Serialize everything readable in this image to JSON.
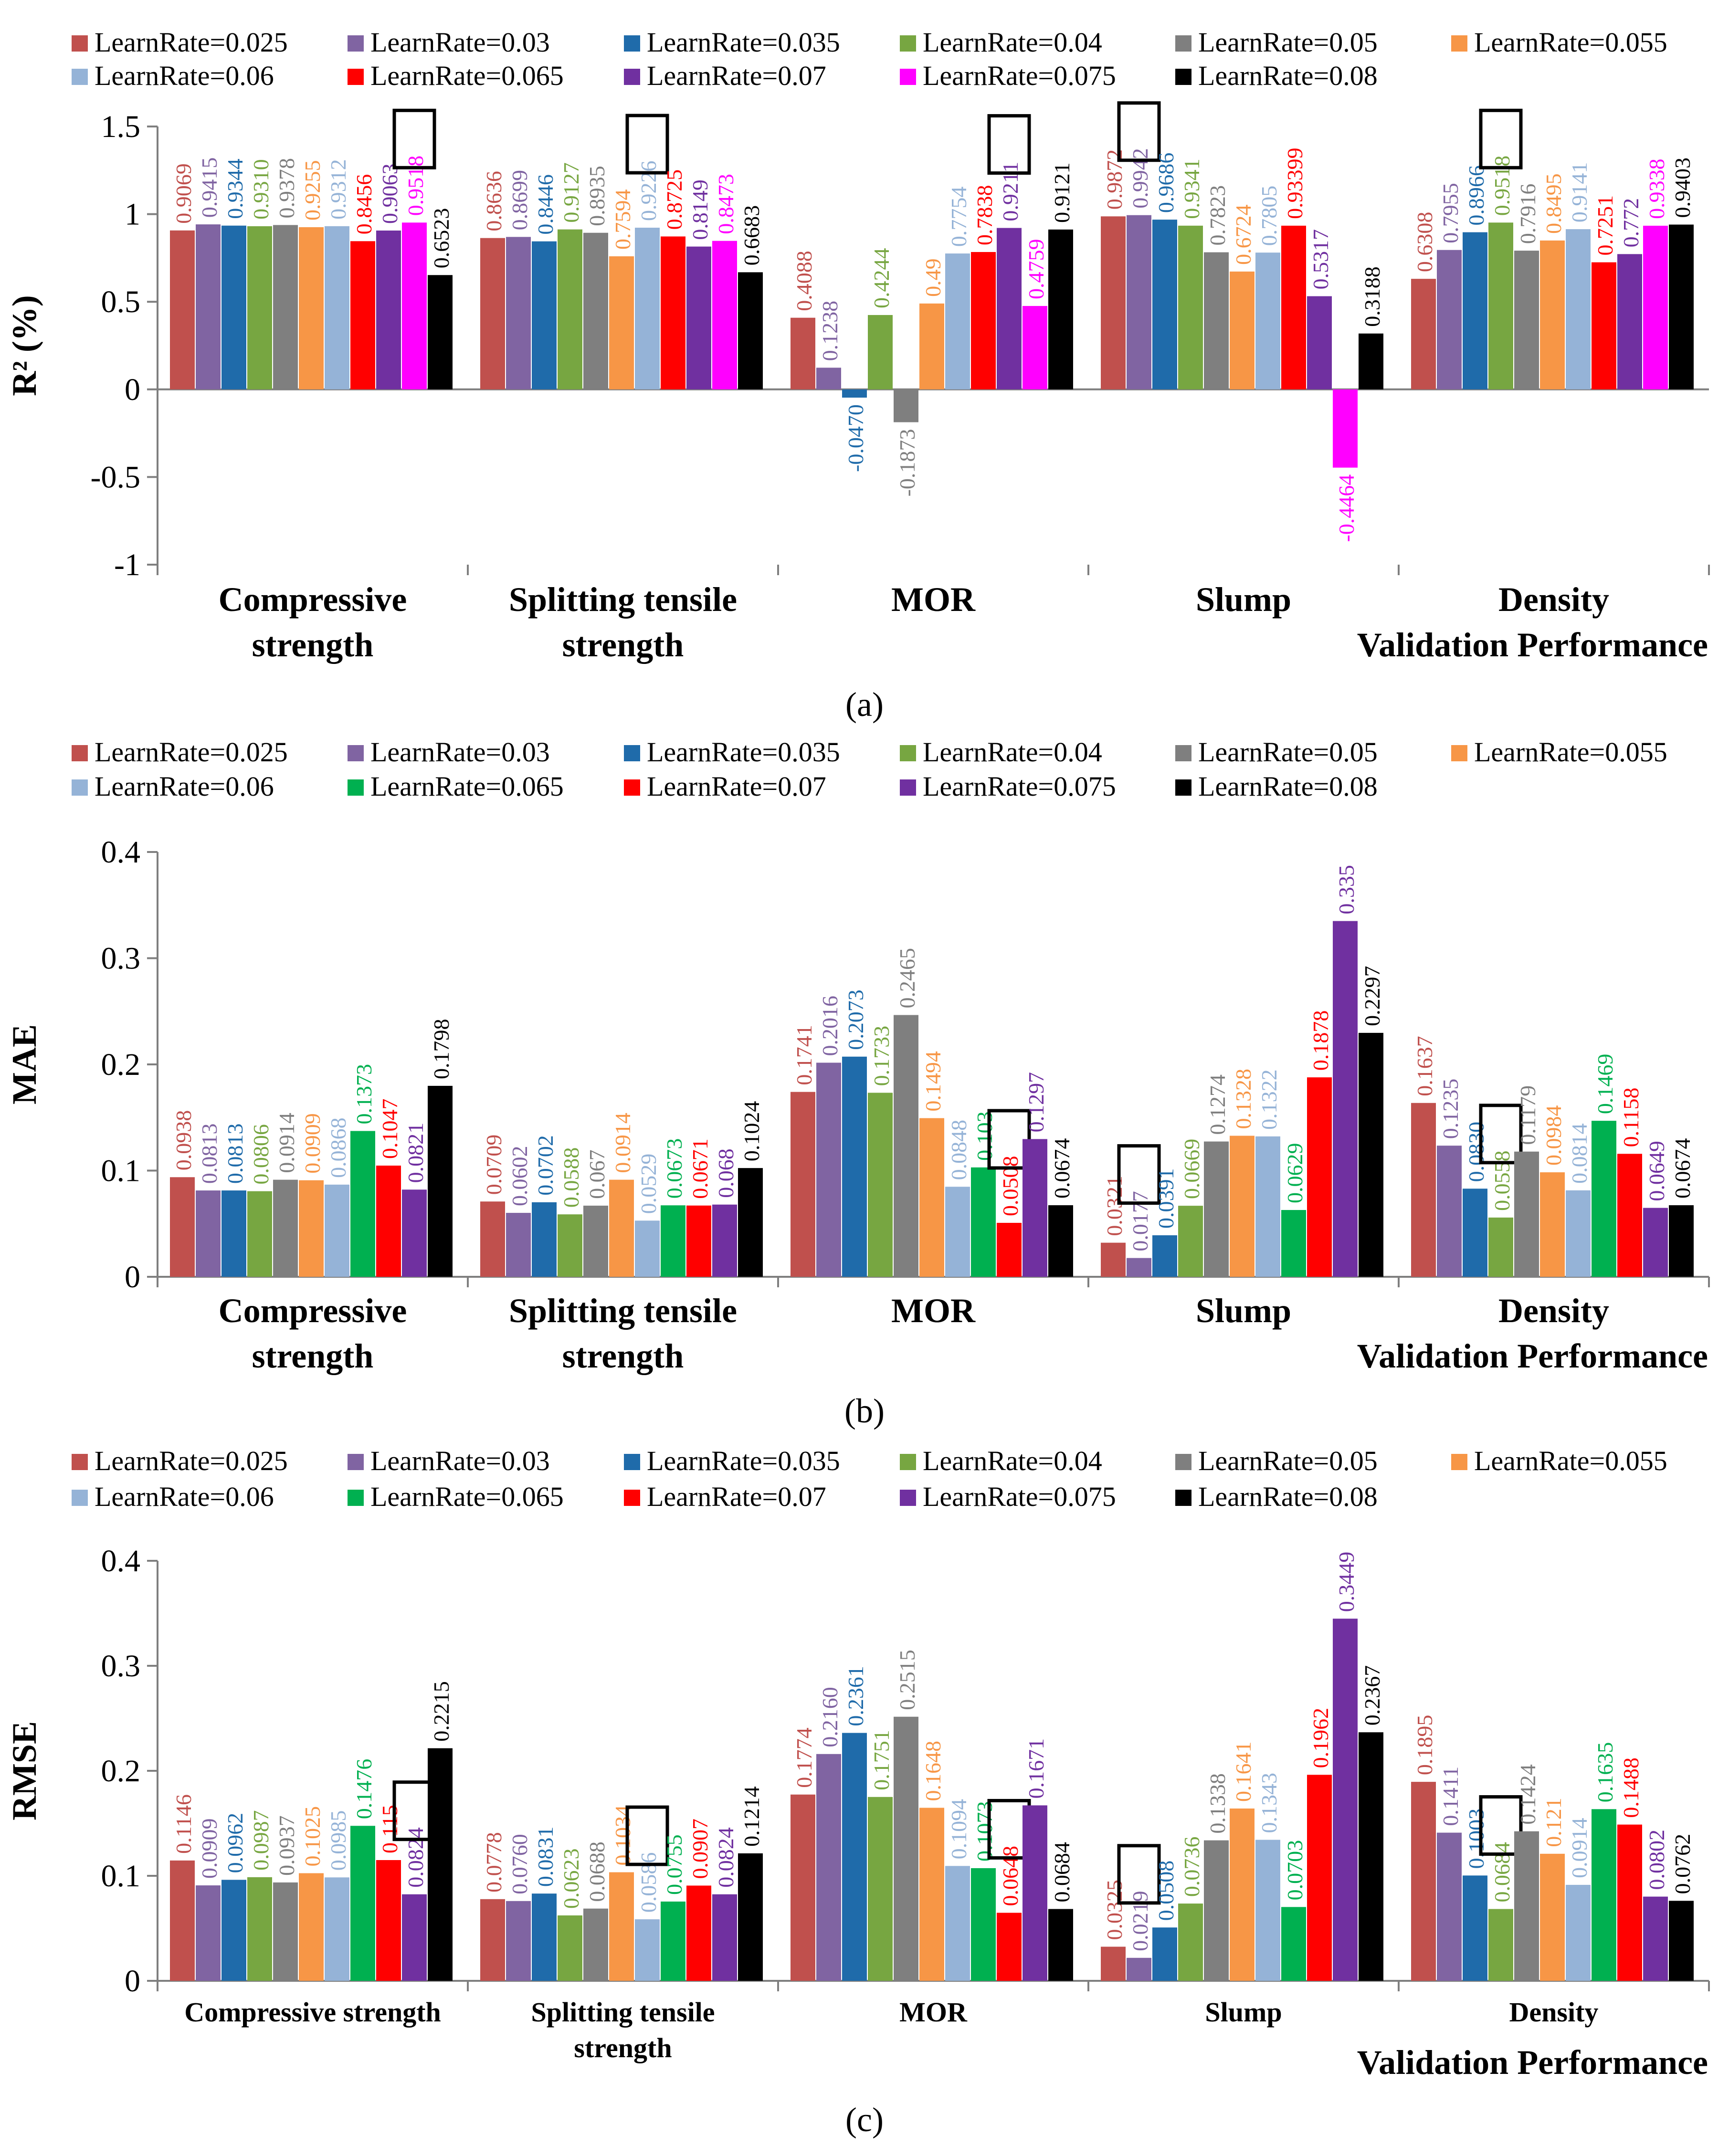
{
  "figure": {
    "panel_labels": [
      "(a)",
      "(b)",
      "(c)"
    ]
  },
  "chart_data": [
    {
      "type": "bar",
      "panel": "(a)",
      "ylabel": "R² (%)",
      "xlabel": "Validation Performance",
      "ylim": [
        -1,
        1.5
      ],
      "yticks": [
        "-1",
        "-0.5",
        "0",
        "0.5",
        "1",
        "1.5"
      ],
      "grid": false,
      "legend_position": "top",
      "categories": [
        "Compressive strength",
        "Splitting tensile strength",
        "MOR",
        "Slump",
        "Density"
      ],
      "series": [
        {
          "name": "LearnRate=0.025",
          "color": "#C0504D",
          "values": [
            0.9069,
            0.8636,
            0.4088,
            0.9872,
            0.6308
          ],
          "labels": [
            "0.9069",
            "0.8636",
            "0.4088",
            "0.9872",
            "0.6308"
          ]
        },
        {
          "name": "LearnRate=0.03",
          "color": "#8064A2",
          "values": [
            0.9415,
            0.8699,
            0.1238,
            0.9942,
            0.7955
          ],
          "labels": [
            "0.9415",
            "0.8699",
            "0.1238",
            "0.9942",
            "0.7955"
          ]
        },
        {
          "name": "LearnRate=0.035",
          "color": "#1F6BAA",
          "values": [
            0.9344,
            0.8446,
            -0.047,
            0.9686,
            0.8966
          ],
          "labels": [
            "0.9344",
            "0.8446",
            "-0.0470",
            "0.9686",
            "0.8966"
          ]
        },
        {
          "name": "LearnRate=0.04",
          "color": "#77A641",
          "values": [
            0.931,
            0.9127,
            0.4244,
            0.9341,
            0.9518
          ],
          "labels": [
            "0.9310",
            "0.9127",
            "0.4244",
            "0.9341",
            "0.9518"
          ]
        },
        {
          "name": "LearnRate=0.05",
          "color": "#7F7F7F",
          "values": [
            0.9378,
            0.8935,
            -0.1873,
            0.7823,
            0.7916
          ],
          "labels": [
            "0.9378",
            "0.8935",
            "-0.1873",
            "0.7823",
            "0.7916"
          ]
        },
        {
          "name": "LearnRate=0.055",
          "color": "#F79646",
          "values": [
            0.9255,
            0.7594,
            0.49,
            0.6724,
            0.8495
          ],
          "labels": [
            "0.9255",
            "0.7594",
            "0.49",
            "0.6724",
            "0.8495"
          ]
        },
        {
          "name": "LearnRate=0.06",
          "color": "#95B3D7",
          "values": [
            0.9312,
            0.9226,
            0.7754,
            0.7805,
            0.9141
          ],
          "labels": [
            "0.9312",
            "0.9226",
            "0.7754",
            "0.7805",
            "0.9141"
          ]
        },
        {
          "name": "LearnRate=0.065",
          "color": "#FF0000",
          "values": [
            0.8456,
            0.8725,
            0.7838,
            0.93399,
            0.7251
          ],
          "labels": [
            "0.8456",
            "0.8725",
            "0.7838",
            "0.93399",
            "0.7251"
          ]
        },
        {
          "name": "LearnRate=0.07",
          "color": "#7030A0",
          "values": [
            0.9063,
            0.8149,
            0.9211,
            0.5317,
            0.772
          ],
          "labels": [
            "0.9063",
            "0.8149",
            "0.9211",
            "0.5317",
            "0.772"
          ]
        },
        {
          "name": "LearnRate=0.075",
          "color": "#FF00FF",
          "values": [
            0.9518,
            0.8473,
            0.4759,
            -0.4464,
            0.9338
          ],
          "labels": [
            "0.9518",
            "0.8473",
            "0.4759",
            "-0.4464",
            "0.9338"
          ]
        },
        {
          "name": "LearnRate=0.08",
          "color": "#000000",
          "values": [
            0.6523,
            0.6683,
            0.9121,
            0.3188,
            0.9403
          ],
          "labels": [
            "0.6523",
            "0.6683",
            "0.9121",
            "0.3188",
            "0.9403"
          ]
        }
      ],
      "highlighted": [
        [
          0,
          9
        ],
        [
          1,
          6
        ],
        [
          2,
          8
        ],
        [
          3,
          1
        ],
        [
          4,
          3
        ]
      ]
    },
    {
      "type": "bar",
      "panel": "(b)",
      "ylabel": "MAE",
      "xlabel": "Validation Performance",
      "ylim": [
        0,
        0.4
      ],
      "yticks": [
        "0",
        "0.1",
        "0.2",
        "0.3",
        "0.4"
      ],
      "grid": false,
      "legend_position": "top",
      "categories": [
        "Compressive strength",
        "Splitting tensile strength",
        "MOR",
        "Slump",
        "Density"
      ],
      "series": [
        {
          "name": "LearnRate=0.025",
          "color": "#C0504D",
          "values": [
            0.0938,
            0.0709,
            0.1741,
            0.0321,
            0.1637
          ],
          "labels": [
            "0.0938",
            "0.0709",
            "0.1741",
            "0.0321",
            "0.1637"
          ]
        },
        {
          "name": "LearnRate=0.03",
          "color": "#8064A2",
          "values": [
            0.0813,
            0.0602,
            0.2016,
            0.0177,
            0.1235
          ],
          "labels": [
            "0.0813",
            "0.0602",
            "0.2016",
            "0.0177",
            "0.1235"
          ]
        },
        {
          "name": "LearnRate=0.035",
          "color": "#1F6BAA",
          "values": [
            0.0813,
            0.0702,
            0.2073,
            0.0391,
            0.083
          ],
          "labels": [
            "0.0813",
            "0.0702",
            "0.2073",
            "0.0391",
            "0.0830"
          ]
        },
        {
          "name": "LearnRate=0.04",
          "color": "#77A641",
          "values": [
            0.0806,
            0.0588,
            0.1733,
            0.0669,
            0.0558
          ],
          "labels": [
            "0.0806",
            "0.0588",
            "0.1733",
            "0.0669",
            "0.0558"
          ]
        },
        {
          "name": "LearnRate=0.05",
          "color": "#7F7F7F",
          "values": [
            0.0914,
            0.067,
            0.2465,
            0.1274,
            0.1179
          ],
          "labels": [
            "0.0914",
            "0.067",
            "0.2465",
            "0.1274",
            "0.1179"
          ]
        },
        {
          "name": "LearnRate=0.055",
          "color": "#F79646",
          "values": [
            0.0909,
            0.0914,
            0.1494,
            0.1328,
            0.0984
          ],
          "labels": [
            "0.0909",
            "0.0914",
            "0.1494",
            "0.1328",
            "0.0984"
          ]
        },
        {
          "name": "LearnRate=0.06",
          "color": "#95B3D7",
          "values": [
            0.0868,
            0.0529,
            0.0848,
            0.1322,
            0.0814
          ],
          "labels": [
            "0.0868",
            "0.0529",
            "0.0848",
            "0.1322",
            "0.0814"
          ]
        },
        {
          "name": "LearnRate=0.065",
          "color": "#00B050",
          "values": [
            0.1373,
            0.0673,
            0.103,
            0.0629,
            0.1469
          ],
          "labels": [
            "0.1373",
            "0.0673",
            "0.103",
            "0.0629",
            "0.1469"
          ]
        },
        {
          "name": "LearnRate=0.07",
          "color": "#FF0000",
          "values": [
            0.1047,
            0.0671,
            0.0508,
            0.1878,
            0.1158
          ],
          "labels": [
            "0.1047",
            "0.0671",
            "0.0508",
            "0.1878",
            "0.1158"
          ]
        },
        {
          "name": "LearnRate=0.075",
          "color": "#7030A0",
          "values": [
            0.0821,
            0.068,
            0.1297,
            0.335,
            0.0649
          ],
          "labels": [
            "0.0821",
            "0.068",
            "0.1297",
            "0.335",
            "0.0649"
          ]
        },
        {
          "name": "LearnRate=0.08",
          "color": "#000000",
          "values": [
            0.1798,
            0.1024,
            0.0674,
            0.2297,
            0.0674
          ],
          "labels": [
            "0.1798",
            "0.1024",
            "0.0674",
            "0.2297",
            "0.0674"
          ]
        }
      ],
      "highlighted": [
        [
          2,
          8
        ],
        [
          3,
          1
        ],
        [
          4,
          3
        ]
      ]
    },
    {
      "type": "bar",
      "panel": "(c)",
      "ylabel": "RMSE",
      "xlabel": "Validation Performance",
      "ylim": [
        0,
        0.4
      ],
      "yticks": [
        "0",
        "0.1",
        "0.2",
        "0.3",
        "0.4"
      ],
      "grid": false,
      "legend_position": "top",
      "categories": [
        "Compressive strength",
        "Splitting tensile strength",
        "MOR",
        "Slump",
        "Density"
      ],
      "series": [
        {
          "name": "LearnRate=0.025",
          "color": "#C0504D",
          "values": [
            0.1146,
            0.0778,
            0.1774,
            0.0325,
            0.1895
          ],
          "labels": [
            "0.1146",
            "0.0778",
            "0.1774",
            "0.0325",
            "0.1895"
          ]
        },
        {
          "name": "LearnRate=0.03",
          "color": "#8064A2",
          "values": [
            0.0909,
            0.076,
            0.216,
            0.0219,
            0.1411
          ],
          "labels": [
            "0.0909",
            "0.0760",
            "0.2160",
            "0.0219",
            "0.1411"
          ]
        },
        {
          "name": "LearnRate=0.035",
          "color": "#1F6BAA",
          "values": [
            0.0962,
            0.0831,
            0.2361,
            0.0508,
            0.1003
          ],
          "labels": [
            "0.0962",
            "0.0831",
            "0.2361",
            "0.0508",
            "0.1003"
          ]
        },
        {
          "name": "LearnRate=0.04",
          "color": "#77A641",
          "values": [
            0.0987,
            0.0623,
            0.1751,
            0.0736,
            0.0684
          ],
          "labels": [
            "0.0987",
            "0.0623",
            "0.1751",
            "0.0736",
            "0.0684"
          ]
        },
        {
          "name": "LearnRate=0.05",
          "color": "#7F7F7F",
          "values": [
            0.0937,
            0.0688,
            0.2515,
            0.1338,
            0.1424
          ],
          "labels": [
            "0.0937",
            "0.0688",
            "0.2515",
            "0.1338",
            "0.1424"
          ]
        },
        {
          "name": "LearnRate=0.055",
          "color": "#F79646",
          "values": [
            0.1025,
            0.1034,
            0.1648,
            0.1641,
            0.121
          ],
          "labels": [
            "0.1025",
            "0.1034",
            "0.1648",
            "0.1641",
            "0.121"
          ]
        },
        {
          "name": "LearnRate=0.06",
          "color": "#95B3D7",
          "values": [
            0.0985,
            0.0586,
            0.1094,
            0.1343,
            0.0914
          ],
          "labels": [
            "0.0985",
            "0.0586",
            "0.1094",
            "0.1343",
            "0.0914"
          ]
        },
        {
          "name": "LearnRate=0.065",
          "color": "#00B050",
          "values": [
            0.1476,
            0.0755,
            0.1073,
            0.0703,
            0.1635
          ],
          "labels": [
            "0.1476",
            "0.0755",
            "0.1073",
            "0.0703",
            "0.1635"
          ]
        },
        {
          "name": "LearnRate=0.07",
          "color": "#FF0000",
          "values": [
            0.115,
            0.0907,
            0.0648,
            0.1962,
            0.1488
          ],
          "labels": [
            "0.115",
            "0.0907",
            "0.0648",
            "0.1962",
            "0.1488"
          ]
        },
        {
          "name": "LearnRate=0.075",
          "color": "#7030A0",
          "values": [
            0.0824,
            0.0824,
            0.1671,
            0.3449,
            0.0802
          ],
          "labels": [
            "0.0824",
            "0.0824",
            "0.1671",
            "0.3449",
            "0.0802"
          ]
        },
        {
          "name": "LearnRate=0.08",
          "color": "#000000",
          "values": [
            0.2215,
            0.1214,
            0.0684,
            0.2367,
            0.0762
          ],
          "labels": [
            "0.2215",
            "0.1214",
            "0.0684",
            "0.2367",
            "0.0762"
          ]
        }
      ],
      "highlighted": [
        [
          0,
          9
        ],
        [
          1,
          6
        ],
        [
          2,
          8
        ],
        [
          3,
          1
        ],
        [
          4,
          3
        ]
      ]
    }
  ]
}
